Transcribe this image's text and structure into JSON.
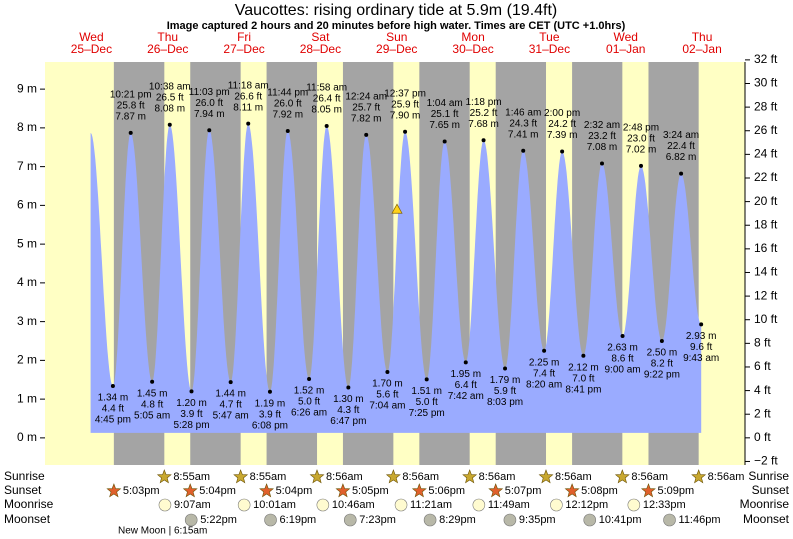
{
  "chart_data": {
    "type": "tide",
    "title": "Vaucottes: rising  ordinary tide at 5.9m (19.4ft)",
    "subtitle": "Image captured 2 hours and 20 minutes before high water. Times are CET (UTC +1.0hrs)",
    "current_level": 5.9,
    "xlim": [
      -4.6,
      215.5
    ],
    "ylim": [
      -0.7,
      9.7
    ],
    "yticks": [
      {
        "value": 0,
        "label": "0 m"
      },
      {
        "value": 1,
        "label": "1 m"
      },
      {
        "value": 2,
        "label": "2 m"
      },
      {
        "value": 3,
        "label": "3 m"
      },
      {
        "value": 4,
        "label": "4 m"
      },
      {
        "value": 5,
        "label": "5 m"
      },
      {
        "value": 6,
        "label": "6 m"
      },
      {
        "value": 7,
        "label": "7 m"
      },
      {
        "value": 8,
        "label": "8 m"
      },
      {
        "value": 9,
        "label": "9 m"
      }
    ],
    "y2lim": [
      -2.3,
      31.82
    ],
    "y2ticks": [
      {
        "value": -2,
        "label": "−2 ft"
      },
      {
        "value": 0,
        "label": "0 ft"
      },
      {
        "value": 2,
        "label": "2 ft"
      },
      {
        "value": 4,
        "label": "4 ft"
      },
      {
        "value": 6,
        "label": "6 ft"
      },
      {
        "value": 8,
        "label": "8 ft"
      },
      {
        "value": 10,
        "label": "10 ft"
      },
      {
        "value": 12,
        "label": "12 ft"
      },
      {
        "value": 14,
        "label": "14 ft"
      },
      {
        "value": 16,
        "label": "16 ft"
      },
      {
        "value": 18,
        "label": "18 ft"
      },
      {
        "value": 20,
        "label": "20 ft"
      },
      {
        "value": 22,
        "label": "22 ft"
      },
      {
        "value": 24,
        "label": "24 ft"
      },
      {
        "value": 26,
        "label": "26 ft"
      },
      {
        "value": 28,
        "label": "28 ft"
      },
      {
        "value": 30,
        "label": "30 ft"
      },
      {
        "value": 32,
        "label": "32 ft"
      }
    ],
    "row_labels": [
      "Sunrise",
      "Sunset",
      "Moonrise",
      "Moonset"
    ],
    "moon_phase": "New Moon | 6:15am",
    "colors": {
      "day": "#ffffc4",
      "night": "#a4a4a4",
      "water": "#9aabff",
      "date": "#e00000"
    },
    "days": [
      {
        "weekday": "Wed",
        "date": "25–Dec",
        "sunrise": null,
        "sunset": "5:03pm",
        "moonrise": null,
        "moonset": null,
        "tides": [
          {
            "time": "4:45 pm",
            "value": 1.34,
            "value_label": "1.34 m",
            "ft_label": "4.4 ft"
          },
          {
            "time": "10:21 pm",
            "value": 7.87,
            "value_label": "7.87 m",
            "ft_label": "25.8 ft"
          }
        ]
      },
      {
        "weekday": "Thu",
        "date": "26–Dec",
        "sunrise": "8:55am",
        "sunset": "5:04pm",
        "moonrise": "9:07am",
        "moonset": "5:22pm",
        "tides": [
          {
            "time": "5:05 am",
            "value": 1.45,
            "value_label": "1.45 m",
            "ft_label": "4.8 ft"
          },
          {
            "time": "10:38 am",
            "value": 8.08,
            "value_label": "8.08 m",
            "ft_label": "26.5 ft"
          },
          {
            "time": "5:28 pm",
            "value": 1.2,
            "value_label": "1.20 m",
            "ft_label": "3.9 ft"
          },
          {
            "time": "11:03 pm",
            "value": 7.94,
            "value_label": "7.94 m",
            "ft_label": "26.0 ft"
          }
        ]
      },
      {
        "weekday": "Fri",
        "date": "27–Dec",
        "sunrise": "8:55am",
        "sunset": "5:04pm",
        "moonrise": "10:01am",
        "moonset": "6:19pm",
        "tides": [
          {
            "time": "5:47 am",
            "value": 1.44,
            "value_label": "1.44 m",
            "ft_label": "4.7 ft"
          },
          {
            "time": "11:18 am",
            "value": 8.11,
            "value_label": "8.11 m",
            "ft_label": "26.6 ft"
          },
          {
            "time": "6:08 pm",
            "value": 1.19,
            "value_label": "1.19 m",
            "ft_label": "3.9 ft"
          },
          {
            "time": "11:44 pm",
            "value": 7.92,
            "value_label": "7.92 m",
            "ft_label": "26.0 ft"
          }
        ]
      },
      {
        "weekday": "Sat",
        "date": "28–Dec",
        "sunrise": "8:56am",
        "sunset": "5:05pm",
        "moonrise": "10:46am",
        "moonset": "7:23pm",
        "tides": [
          {
            "time": "6:26 am",
            "value": 1.52,
            "value_label": "1.52 m",
            "ft_label": "5.0 ft"
          },
          {
            "time": "11:58 am",
            "value": 8.05,
            "value_label": "8.05 m",
            "ft_label": "26.4 ft"
          },
          {
            "time": "6:47 pm",
            "value": 1.3,
            "value_label": "1.30 m",
            "ft_label": "4.3 ft"
          }
        ]
      },
      {
        "weekday": "Sun",
        "date": "29–Dec",
        "sunrise": "8:56am",
        "sunset": "5:06pm",
        "moonrise": "11:21am",
        "moonset": "8:29pm",
        "tides": [
          {
            "time": "12:24 am",
            "value": 7.82,
            "value_label": "7.82 m",
            "ft_label": "25.7 ft"
          },
          {
            "time": "7:04 am",
            "value": 1.7,
            "value_label": "1.70 m",
            "ft_label": "5.6 ft"
          },
          {
            "time": "12:37 pm",
            "value": 7.9,
            "value_label": "7.90 m",
            "ft_label": "25.9 ft"
          },
          {
            "time": "7:25 pm",
            "value": 1.51,
            "value_label": "1.51 m",
            "ft_label": "5.0 ft"
          }
        ]
      },
      {
        "weekday": "Mon",
        "date": "30–Dec",
        "sunrise": "8:56am",
        "sunset": "5:07pm",
        "moonrise": "11:49am",
        "moonset": "9:35pm",
        "tides": [
          {
            "time": "1:04 am",
            "value": 7.65,
            "value_label": "7.65 m",
            "ft_label": "25.1 ft"
          },
          {
            "time": "7:42 am",
            "value": 1.95,
            "value_label": "1.95 m",
            "ft_label": "6.4 ft"
          },
          {
            "time": "1:18 pm",
            "value": 7.68,
            "value_label": "7.68 m",
            "ft_label": "25.2 ft"
          },
          {
            "time": "8:03 pm",
            "value": 1.79,
            "value_label": "1.79 m",
            "ft_label": "5.9 ft"
          }
        ]
      },
      {
        "weekday": "Tue",
        "date": "31–Dec",
        "sunrise": "8:56am",
        "sunset": "5:08pm",
        "moonrise": "12:12pm",
        "moonset": "10:41pm",
        "tides": [
          {
            "time": "1:46 am",
            "value": 7.41,
            "value_label": "7.41 m",
            "ft_label": "24.3 ft"
          },
          {
            "time": "8:20 am",
            "value": 2.25,
            "value_label": "2.25 m",
            "ft_label": "7.4 ft"
          },
          {
            "time": "2:00 pm",
            "value": 7.39,
            "value_label": "7.39 m",
            "ft_label": "24.2 ft"
          },
          {
            "time": "8:41 pm",
            "value": 2.12,
            "value_label": "2.12 m",
            "ft_label": "7.0 ft"
          }
        ]
      },
      {
        "weekday": "Wed",
        "date": "01–Jan",
        "sunrise": "8:56am",
        "sunset": "5:09pm",
        "moonrise": "12:33pm",
        "moonset": "11:46pm",
        "tides": [
          {
            "time": "2:32 am",
            "value": 7.08,
            "value_label": "7.08 m",
            "ft_label": "23.2 ft"
          },
          {
            "time": "9:00 am",
            "value": 2.63,
            "value_label": "2.63 m",
            "ft_label": "8.6 ft"
          },
          {
            "time": "2:48 pm",
            "value": 7.02,
            "value_label": "7.02 m",
            "ft_label": "23.0 ft"
          },
          {
            "time": "9:22 pm",
            "value": 2.5,
            "value_label": "2.50 m",
            "ft_label": "8.2 ft"
          }
        ]
      },
      {
        "weekday": "Thu",
        "date": "02–Jan",
        "sunrise": "8:56am",
        "sunset": null,
        "moonrise": null,
        "moonset": null,
        "tides": [
          {
            "time": "3:24 am",
            "value": 6.82,
            "value_label": "6.82 m",
            "ft_label": "22.4 ft"
          },
          {
            "time": "9:43 am",
            "value": 2.93,
            "value_label": "2.93 m",
            "ft_label": "9.6 ft"
          }
        ]
      }
    ]
  }
}
